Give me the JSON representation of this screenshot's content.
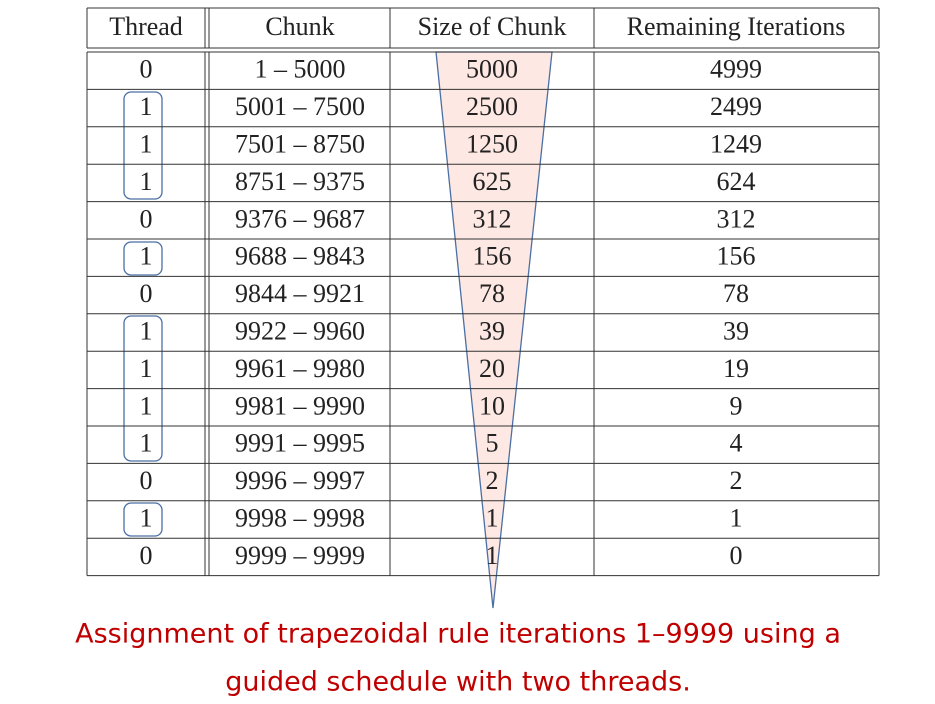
{
  "table": {
    "header": [
      "Thread",
      "Chunk",
      "Size of Chunk",
      "Remaining Iterations"
    ],
    "rows": [
      [
        "0",
        "1 – 5000",
        "5000",
        "4999"
      ],
      [
        "1",
        "5001 – 7500",
        "2500",
        "2499"
      ],
      [
        "1",
        "7501 – 8750",
        "1250",
        "1249"
      ],
      [
        "1",
        "8751 – 9375",
        "625",
        "624"
      ],
      [
        "0",
        "9376 – 9687",
        "312",
        "312"
      ],
      [
        "1",
        "9688 – 9843",
        "156",
        "156"
      ],
      [
        "0",
        "9844 – 9921",
        "78",
        "78"
      ],
      [
        "1",
        "9922 – 9960",
        "39",
        "39"
      ],
      [
        "1",
        "9961 – 9980",
        "20",
        "19"
      ],
      [
        "1",
        "9981 – 9990",
        "10",
        "9"
      ],
      [
        "1",
        "9991 – 9995",
        "5",
        "4"
      ],
      [
        "0",
        "9996 – 9997",
        "2",
        "2"
      ],
      [
        "1",
        "9998 – 9998",
        "1",
        "1"
      ],
      [
        "0",
        "9999 – 9999",
        "1",
        "0"
      ]
    ]
  },
  "caption": [
    "Assignment of trapezoidal rule iterations 1–9999 using a",
    "guided schedule with two threads."
  ]
}
